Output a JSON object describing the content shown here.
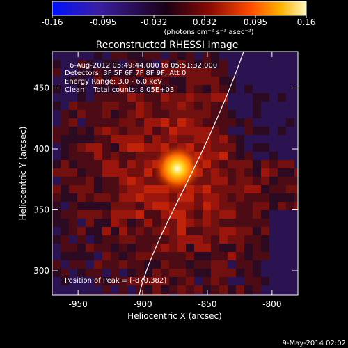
{
  "colorbar": {
    "ticks": [
      "-0.16",
      "-0.095",
      "-0.032",
      "0.032",
      "0.095",
      "0.16"
    ],
    "unit_label": "(photons cm⁻² s⁻¹ asec⁻²)",
    "colors": [
      "#0010ff",
      "#3a1fa3",
      "#1a0015",
      "#8a0a05",
      "#ff4a00",
      "#ffb300",
      "#fff6c0"
    ]
  },
  "chart_data": {
    "type": "heatmap",
    "title": "Reconstructed RHESSI Image",
    "xlabel": "Heliocentric X (arcsec)",
    "ylabel": "Heliocentric Y (arcsec)",
    "xlim": [
      -970,
      -780
    ],
    "ylim": [
      280,
      480
    ],
    "x_ticks": [
      "-950",
      "-900",
      "-850",
      "-800"
    ],
    "y_ticks": [
      "300",
      "350",
      "400",
      "450"
    ],
    "x_tick_values": [
      -950,
      -900,
      -850,
      -800
    ],
    "y_tick_values": [
      300,
      350,
      400,
      450
    ],
    "peak": {
      "x": -870,
      "y": 382
    },
    "info_lines": [
      "6-Aug-2012 05:49:44.000 to 05:51:32.000",
      "Detectors: 3F 5F 6F 7F 8F 9F, Att 0",
      "Energy Range: 3.0 - 6.0 keV",
      "Clean    Total counts: 8.05E+03"
    ],
    "peak_label": "Position of Peak = [-870,382]"
  },
  "footer": {
    "timestamp": "9-May-2014 02:02"
  }
}
